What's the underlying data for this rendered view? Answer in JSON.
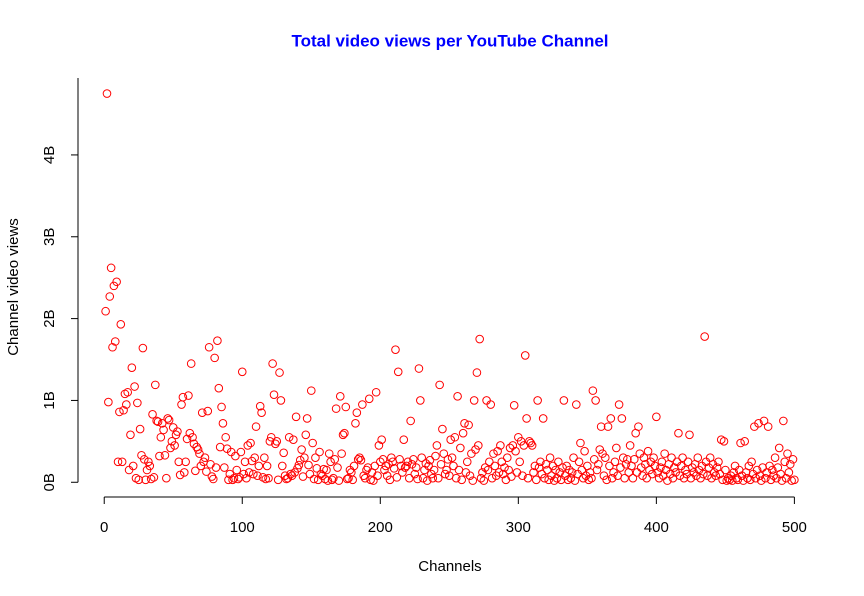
{
  "chart_data": {
    "type": "scatter",
    "title": "Total video views per YouTube Channel",
    "x_label": "Channels",
    "y_label": "Channel video views",
    "xlim": [
      -19,
      520
    ],
    "ylim": [
      -0.18,
      4.94
    ],
    "xticks": [
      0,
      100,
      200,
      300,
      400,
      500
    ],
    "yticks": [
      {
        "value": 0,
        "label": "0B"
      },
      {
        "value": 1,
        "label": "1B"
      },
      {
        "value": 2,
        "label": "2B"
      },
      {
        "value": 3,
        "label": "3B"
      },
      {
        "value": 4,
        "label": "4B"
      }
    ],
    "series": [
      {
        "color": "#ff0000",
        "x": [
          1,
          2,
          3,
          4,
          5,
          6,
          7,
          8,
          9,
          10,
          11,
          12,
          13,
          14,
          15,
          16,
          17,
          18,
          19,
          20,
          21,
          22,
          23,
          24,
          25,
          26,
          27,
          28,
          29,
          30,
          31,
          32,
          33,
          34,
          35,
          36,
          37,
          38,
          39,
          40,
          41,
          42,
          43,
          44,
          45,
          46,
          47,
          48,
          49,
          50,
          51,
          52,
          53,
          54,
          55,
          56,
          57,
          58,
          59,
          60,
          61,
          62,
          63,
          64,
          65,
          66,
          67,
          68,
          69,
          70,
          71,
          72,
          73,
          74,
          75,
          76,
          77,
          78,
          79,
          80,
          81,
          82,
          83,
          84,
          85,
          86,
          87,
          88,
          89,
          90,
          91,
          92,
          93,
          94,
          95,
          96,
          97,
          98,
          99,
          100,
          101,
          102,
          103,
          104,
          105,
          106,
          107,
          108,
          109,
          110,
          111,
          112,
          113,
          114,
          115,
          116,
          117,
          118,
          119,
          120,
          121,
          122,
          123,
          124,
          125,
          126,
          127,
          128,
          129,
          130,
          131,
          132,
          133,
          134,
          135,
          136,
          137,
          138,
          139,
          140,
          141,
          142,
          143,
          144,
          145,
          146,
          147,
          148,
          149,
          150,
          151,
          152,
          153,
          154,
          155,
          156,
          157,
          158,
          159,
          160,
          161,
          162,
          163,
          164,
          165,
          166,
          167,
          168,
          169,
          170,
          171,
          172,
          173,
          174,
          175,
          176,
          177,
          178,
          179,
          180,
          181,
          182,
          183,
          184,
          185,
          186,
          187,
          188,
          189,
          190,
          191,
          192,
          193,
          194,
          195,
          196,
          197,
          198,
          199,
          200,
          201,
          202,
          203,
          204,
          205,
          206,
          207,
          208,
          209,
          210,
          211,
          212,
          213,
          214,
          215,
          216,
          217,
          218,
          219,
          220,
          221,
          222,
          223,
          224,
          225,
          226,
          227,
          228,
          229,
          230,
          231,
          232,
          233,
          234,
          235,
          236,
          237,
          238,
          239,
          240,
          241,
          242,
          243,
          244,
          245,
          246,
          247,
          248,
          249,
          250,
          251,
          252,
          253,
          254,
          255,
          256,
          257,
          258,
          259,
          260,
          261,
          262,
          263,
          264,
          265,
          266,
          267,
          268,
          269,
          270,
          271,
          272,
          273,
          274,
          275,
          276,
          277,
          278,
          279,
          280,
          281,
          282,
          283,
          284,
          285,
          286,
          287,
          288,
          289,
          290,
          291,
          292,
          293,
          294,
          295,
          296,
          297,
          298,
          299,
          300,
          301,
          302,
          303,
          304,
          305,
          306,
          307,
          308,
          309,
          310,
          311,
          312,
          313,
          314,
          315,
          316,
          317,
          318,
          319,
          320,
          321,
          322,
          323,
          324,
          325,
          326,
          327,
          328,
          329,
          330,
          331,
          332,
          333,
          334,
          335,
          336,
          337,
          338,
          339,
          340,
          341,
          342,
          343,
          344,
          345,
          346,
          347,
          348,
          349,
          350,
          351,
          352,
          353,
          354,
          355,
          356,
          357,
          358,
          359,
          360,
          361,
          362,
          363,
          364,
          365,
          366,
          367,
          368,
          369,
          370,
          371,
          372,
          373,
          374,
          375,
          376,
          377,
          378,
          379,
          380,
          381,
          382,
          383,
          384,
          385,
          386,
          387,
          388,
          389,
          390,
          391,
          392,
          393,
          394,
          395,
          396,
          397,
          398,
          399,
          400,
          401,
          402,
          403,
          404,
          405,
          406,
          407,
          408,
          409,
          410,
          411,
          412,
          413,
          414,
          415,
          416,
          417,
          418,
          419,
          420,
          421,
          422,
          423,
          424,
          425,
          426,
          427,
          428,
          429,
          430,
          431,
          432,
          433,
          434,
          435,
          436,
          437,
          438,
          439,
          440,
          441,
          442,
          443,
          444,
          445,
          446,
          447,
          448,
          449,
          450,
          451,
          452,
          453,
          454,
          455,
          456,
          457,
          458,
          459,
          460,
          461,
          462,
          463,
          464,
          465,
          466,
          467,
          468,
          469,
          470,
          471,
          472,
          473,
          474,
          475,
          476,
          477,
          478,
          479,
          480,
          481,
          482,
          483,
          484,
          485,
          486,
          487,
          488,
          489,
          490,
          491,
          492,
          493,
          494,
          495,
          496,
          497,
          498,
          499,
          500
        ],
        "values": [
          2.09,
          4.75,
          0.98,
          2.27,
          2.62,
          1.65,
          2.4,
          1.72,
          2.45,
          0.25,
          0.86,
          1.93,
          0.25,
          0.88,
          1.08,
          0.95,
          1.1,
          0.15,
          0.58,
          1.4,
          0.2,
          1.17,
          0.05,
          0.97,
          0.03,
          0.65,
          0.33,
          1.64,
          0.28,
          0.03,
          0.15,
          0.25,
          0.2,
          0.04,
          0.83,
          0.06,
          1.19,
          0.75,
          0.74,
          0.32,
          0.55,
          0.72,
          0.64,
          0.33,
          0.05,
          0.78,
          0.76,
          0.42,
          0.5,
          0.67,
          0.45,
          0.58,
          0.62,
          0.25,
          0.09,
          0.95,
          1.04,
          0.12,
          0.25,
          0.53,
          1.06,
          0.6,
          1.45,
          0.55,
          0.47,
          0.14,
          0.43,
          0.4,
          0.35,
          0.2,
          0.85,
          0.25,
          0.3,
          0.13,
          0.87,
          1.65,
          0.22,
          0.07,
          0.04,
          1.52,
          0.18,
          1.73,
          1.15,
          0.43,
          0.92,
          0.72,
          0.18,
          0.55,
          0.41,
          0.03,
          0.1,
          0.37,
          0.03,
          0.05,
          0.32,
          0.15,
          0.04,
          0.06,
          0.37,
          1.35,
          0.1,
          0.25,
          0.05,
          0.45,
          0.12,
          0.48,
          0.26,
          0.1,
          0.3,
          0.68,
          0.08,
          0.2,
          0.93,
          0.85,
          0.06,
          0.3,
          0.04,
          0.2,
          0.05,
          0.5,
          0.55,
          1.45,
          1.07,
          0.47,
          0.5,
          0.03,
          1.34,
          1.0,
          0.2,
          0.36,
          0.08,
          0.04,
          0.05,
          0.55,
          0.1,
          0.08,
          0.52,
          0.12,
          0.8,
          0.17,
          0.21,
          0.27,
          0.4,
          0.07,
          0.3,
          0.58,
          0.78,
          0.21,
          0.1,
          1.12,
          0.48,
          0.04,
          0.3,
          0.17,
          0.03,
          0.37,
          0.1,
          0.08,
          0.16,
          0.04,
          0.15,
          0.02,
          0.35,
          0.25,
          0.03,
          0.05,
          0.28,
          0.9,
          0.18,
          0.02,
          1.05,
          0.35,
          0.58,
          0.6,
          0.92,
          0.04,
          0.05,
          0.15,
          0.12,
          0.03,
          0.2,
          0.72,
          0.85,
          0.28,
          0.3,
          0.27,
          0.95,
          0.08,
          0.05,
          0.15,
          0.18,
          1.02,
          0.03,
          0.12,
          0.02,
          0.2,
          1.1,
          0.08,
          0.45,
          0.25,
          0.52,
          0.28,
          0.15,
          0.2,
          0.08,
          0.22,
          0.03,
          0.3,
          0.25,
          0.17,
          1.62,
          0.06,
          1.35,
          0.28,
          0.2,
          0.12,
          0.52,
          0.18,
          0.2,
          0.25,
          0.05,
          0.75,
          0.22,
          0.28,
          0.1,
          0.18,
          0.04,
          1.39,
          1.0,
          0.3,
          0.05,
          0.15,
          0.23,
          0.02,
          0.2,
          0.27,
          0.1,
          0.05,
          0.15,
          0.32,
          0.45,
          0.05,
          1.19,
          0.22,
          0.65,
          0.35,
          0.1,
          0.15,
          0.28,
          0.08,
          0.52,
          0.3,
          0.2,
          0.55,
          0.05,
          1.05,
          0.15,
          0.42,
          0.03,
          0.6,
          0.72,
          0.12,
          0.25,
          0.7,
          0.08,
          0.35,
          0.02,
          1.0,
          0.4,
          1.34,
          0.45,
          1.75,
          0.05,
          0.12,
          0.02,
          0.18,
          1.0,
          0.15,
          0.25,
          0.95,
          0.05,
          0.35,
          0.2,
          0.08,
          0.38,
          0.12,
          0.45,
          0.25,
          0.1,
          0.18,
          0.03,
          0.3,
          0.15,
          0.42,
          0.07,
          0.45,
          0.94,
          0.38,
          0.12,
          0.55,
          0.25,
          0.5,
          0.08,
          0.45,
          1.55,
          0.78,
          0.05,
          0.5,
          0.48,
          0.45,
          0.12,
          0.2,
          0.03,
          1.0,
          0.18,
          0.25,
          0.1,
          0.78,
          0.05,
          0.22,
          0.15,
          0.03,
          0.3,
          0.08,
          0.2,
          0.02,
          0.15,
          0.05,
          0.25,
          0.12,
          0.03,
          0.18,
          1.0,
          0.08,
          0.2,
          0.03,
          0.15,
          0.05,
          0.12,
          0.3,
          0.02,
          0.95,
          0.1,
          0.25,
          0.48,
          0.15,
          0.05,
          0.38,
          0.08,
          0.2,
          0.03,
          0.12,
          0.05,
          1.12,
          0.28,
          1.0,
          0.15,
          0.22,
          0.4,
          0.68,
          0.35,
          0.08,
          0.3,
          0.03,
          0.68,
          0.2,
          0.78,
          0.05,
          0.12,
          0.25,
          0.42,
          0.08,
          0.95,
          0.18,
          0.78,
          0.3,
          0.05,
          0.22,
          0.28,
          0.12,
          0.45,
          0.2,
          0.05,
          0.28,
          0.6,
          0.12,
          0.68,
          0.35,
          0.18,
          0.08,
          0.3,
          0.22,
          0.05,
          0.38,
          0.15,
          0.25,
          0.1,
          0.3,
          0.2,
          0.8,
          0.12,
          0.05,
          0.18,
          0.25,
          0.08,
          0.35,
          0.15,
          0.02,
          0.22,
          0.1,
          0.3,
          0.05,
          0.18,
          0.12,
          0.25,
          0.6,
          0.08,
          0.2,
          0.3,
          0.05,
          0.15,
          0.1,
          0.25,
          0.58,
          0.05,
          0.18,
          0.12,
          0.22,
          0.08,
          0.3,
          0.15,
          0.05,
          0.2,
          0.1,
          1.78,
          0.25,
          0.08,
          0.18,
          0.3,
          0.05,
          0.22,
          0.12,
          0.08,
          0.18,
          0.25,
          0.1,
          0.52,
          0.03,
          0.5,
          0.15,
          0.02,
          0.05,
          0.03,
          0.08,
          0.02,
          0.12,
          0.2,
          0.05,
          0.03,
          0.15,
          0.48,
          0.08,
          0.02,
          0.5,
          0.12,
          0.05,
          0.2,
          0.03,
          0.25,
          0.1,
          0.68,
          0.05,
          0.15,
          0.72,
          0.08,
          0.02,
          0.18,
          0.75,
          0.05,
          0.12,
          0.68,
          0.2,
          0.03,
          0.15,
          0.08,
          0.3,
          0.05,
          0.18,
          0.42,
          0.1,
          0.02,
          0.75,
          0.25,
          0.05,
          0.35,
          0.12,
          0.22,
          0.02,
          0.28,
          0.03
        ]
      }
    ]
  }
}
